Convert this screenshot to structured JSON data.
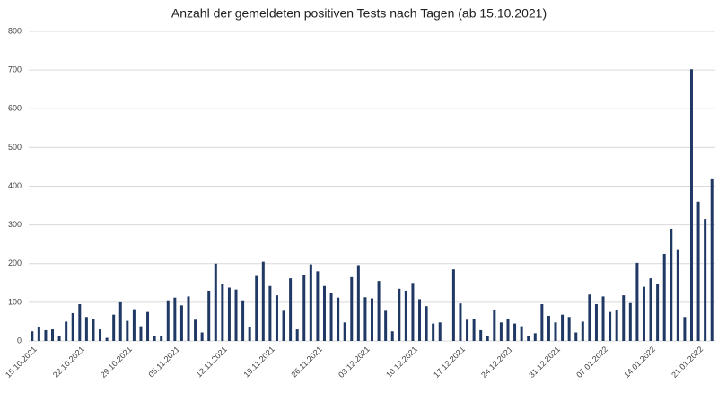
{
  "chart_data": {
    "type": "bar",
    "title": "Anzahl der gemeldeten positiven Tests nach Tagen (ab 15.10.2021)",
    "categories": [
      "15.10.2021",
      null,
      null,
      null,
      null,
      null,
      null,
      "22.10.2021",
      null,
      null,
      null,
      null,
      null,
      null,
      "29.10.2021",
      null,
      null,
      null,
      null,
      null,
      null,
      "05.11.2021",
      null,
      null,
      null,
      null,
      null,
      null,
      "12.11.2021",
      null,
      null,
      null,
      null,
      null,
      null,
      "19.11.2021",
      null,
      null,
      null,
      null,
      null,
      null,
      "26.11.2021",
      null,
      null,
      null,
      null,
      null,
      null,
      "03.12.2021",
      null,
      null,
      null,
      null,
      null,
      null,
      "10.12.2021",
      null,
      null,
      null,
      null,
      null,
      null,
      "17.12.2021",
      null,
      null,
      null,
      null,
      null,
      null,
      "24.12.2021",
      null,
      null,
      null,
      null,
      null,
      null,
      "31.12.2021",
      null,
      null,
      null,
      null,
      null,
      null,
      "07.01.2022",
      null,
      null,
      null,
      null,
      null,
      null,
      "14.01.2022",
      null,
      null,
      null,
      null,
      null,
      null,
      "21.01.2022",
      null,
      null
    ],
    "values": [
      25,
      35,
      28,
      30,
      12,
      50,
      72,
      95,
      62,
      58,
      30,
      8,
      68,
      100,
      52,
      82,
      38,
      75,
      12,
      12,
      105,
      112,
      92,
      115,
      55,
      22,
      130,
      200,
      148,
      138,
      133,
      105,
      35,
      168,
      205,
      142,
      118,
      78,
      162,
      30,
      170,
      198,
      180,
      142,
      125,
      112,
      48,
      165,
      196,
      113,
      110,
      155,
      78,
      25,
      135,
      130,
      150,
      108,
      90,
      45,
      48,
      0,
      185,
      97,
      55,
      58,
      28,
      12,
      80,
      48,
      58,
      45,
      38,
      12,
      20,
      95,
      65,
      48,
      68,
      62,
      22,
      50,
      120,
      95,
      115,
      75,
      80,
      118,
      98,
      202,
      140,
      162,
      148,
      225,
      290,
      235,
      62,
      702,
      360,
      315,
      420
    ],
    "color": "#1f3864",
    "ylim": [
      0,
      800
    ],
    "yticks": [
      0,
      100,
      200,
      300,
      400,
      500,
      600,
      700,
      800
    ],
    "grid": true
  }
}
